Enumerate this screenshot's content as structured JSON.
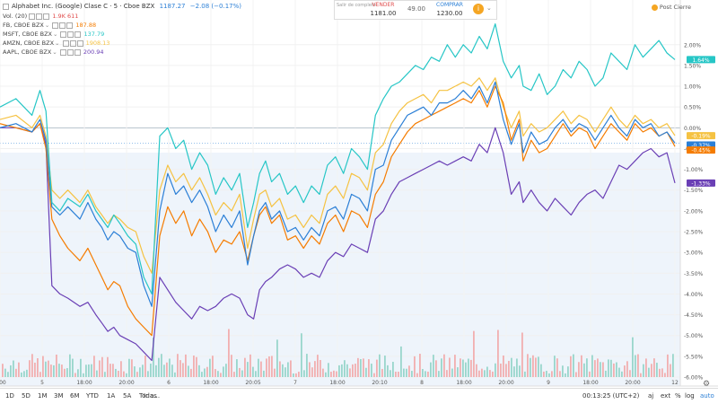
{
  "header": {
    "title": "Alphabet Inc. (Google) Clase C · 5 · Cboe BZX",
    "last": "1187.27",
    "change": "−2.08 (−0.17%)"
  },
  "volume_label": {
    "name": "Vol. (20)",
    "value": "1.9K  611"
  },
  "legend": [
    {
      "name": "FB, CBOE BZX",
      "value": "187.88",
      "color": "#f57c00"
    },
    {
      "name": "MSFT, CBOE BZX",
      "value": "137.79",
      "color": "#26c6c6"
    },
    {
      "name": "AMZN, CBOE BZX",
      "value": "1908.13",
      "color": "#f5c242"
    },
    {
      "name": "AAPL, CBOE BZX",
      "value": "200.94",
      "color": "#6a3fb5"
    }
  ],
  "trade_panel": {
    "small_text": "Salir de completo",
    "sell_label": "VENDER",
    "sell_price": "1181.00",
    "spread": "49.00",
    "buy_label": "COMPRAR",
    "buy_price": "1230.00"
  },
  "post_close_label": "Post Cierre",
  "bottom_bar": {
    "timeframes": [
      "1D",
      "5D",
      "1M",
      "3M",
      "6M",
      "YTD",
      "1A",
      "5A",
      "Todas"
    ],
    "goto": "Ir a...",
    "clock": "00:13:25 (UTC+2)",
    "options": [
      "aj",
      "ext",
      "%",
      "log",
      "auto"
    ]
  },
  "chart_data": {
    "type": "line",
    "ylim": [
      -6.0,
      2.6
    ],
    "y_ticks": [
      "2.00%",
      "1.50%",
      "1.00%",
      "0.50%",
      "0.00%",
      "-0.50%",
      "-1.00%",
      "-1.50%",
      "-2.00%",
      "-2.50%",
      "-3.00%",
      "-3.50%",
      "-4.00%",
      "-4.50%",
      "-5.00%",
      "-5.50%",
      "-6.00%"
    ],
    "x_ticks": [
      "0:00",
      "5",
      "18:00",
      "20:00",
      "6",
      "18:00",
      "20:05",
      "7",
      "18:00",
      "20:10",
      "8",
      "18:00",
      "20:00",
      "9",
      "18:00",
      "20:00",
      "12"
    ],
    "last_labels": [
      {
        "text": "1.64%",
        "value": 1.64,
        "color": "#26c6c6"
      },
      {
        "text": "-0.19%",
        "value": -0.19,
        "color": "#f5c242"
      },
      {
        "text": "-0.37%",
        "value": -0.37,
        "color": "#2b7fd6"
      },
      {
        "text": "-0.45%",
        "value": -0.45,
        "color": "#f57c00"
      },
      {
        "text": "-1.33%",
        "value": -1.33,
        "color": "#6a3fb5"
      }
    ],
    "series": [
      {
        "name": "GOOG",
        "color": "#2b7fd6",
        "x": [
          0,
          0.4,
          0.8,
          1.0,
          1.15,
          1.3,
          1.5,
          1.7,
          2.0,
          2.2,
          2.4,
          2.55,
          2.7,
          2.85,
          3.0,
          3.2,
          3.4,
          3.6,
          3.8,
          4.0,
          4.2,
          4.4,
          4.6,
          4.8,
          5.0,
          5.2,
          5.4,
          5.6,
          5.8,
          6.0,
          6.2,
          6.35,
          6.5,
          6.65,
          6.8,
          7.0,
          7.2,
          7.4,
          7.6,
          7.8,
          8.0,
          8.2,
          8.4,
          8.6,
          8.8,
          9.0,
          9.2,
          9.4,
          9.6,
          9.8,
          10.0,
          10.2,
          10.4,
          10.6,
          10.8,
          11.0,
          11.2,
          11.4,
          11.6,
          11.8,
          12.0,
          12.2,
          12.4,
          12.6,
          12.8,
          13.0,
          13.1,
          13.3,
          13.5,
          13.7,
          13.9,
          14.1,
          14.3,
          14.5,
          14.7,
          14.9,
          15.1,
          15.3,
          15.5,
          15.7,
          15.9,
          16.1,
          16.3,
          16.5,
          16.7,
          16.9
        ],
        "values": [
          0.0,
          0.1,
          -0.1,
          0.2,
          -0.3,
          -1.9,
          -2.1,
          -1.9,
          -2.2,
          -1.8,
          -2.2,
          -2.4,
          -2.7,
          -2.5,
          -2.6,
          -2.9,
          -3.0,
          -3.8,
          -4.3,
          -2.0,
          -1.1,
          -1.6,
          -1.4,
          -1.8,
          -1.5,
          -1.9,
          -2.5,
          -2.1,
          -2.4,
          -2.0,
          -3.3,
          -2.6,
          -2.0,
          -1.8,
          -2.2,
          -2.0,
          -2.5,
          -2.4,
          -2.7,
          -2.4,
          -2.6,
          -2.0,
          -1.9,
          -2.2,
          -1.6,
          -1.7,
          -2.0,
          -1.0,
          -0.9,
          -0.3,
          0.0,
          0.3,
          0.4,
          0.5,
          0.3,
          0.6,
          0.6,
          0.7,
          0.9,
          0.7,
          1.0,
          0.6,
          1.1,
          0.2,
          -0.4,
          0.1,
          -0.6,
          -0.1,
          -0.4,
          -0.3,
          0.0,
          0.2,
          -0.1,
          0.1,
          0.0,
          -0.3,
          0.0,
          0.3,
          0.0,
          -0.2,
          0.2,
          0.0,
          0.1,
          -0.2,
          -0.1,
          -0.37
        ]
      },
      {
        "name": "FB",
        "color": "#f57c00",
        "x": [
          0,
          0.4,
          0.8,
          1.0,
          1.15,
          1.3,
          1.5,
          1.7,
          2.0,
          2.2,
          2.4,
          2.55,
          2.7,
          2.85,
          3.0,
          3.2,
          3.4,
          3.6,
          3.8,
          4.0,
          4.2,
          4.4,
          4.6,
          4.8,
          5.0,
          5.2,
          5.4,
          5.6,
          5.8,
          6.0,
          6.2,
          6.35,
          6.5,
          6.65,
          6.8,
          7.0,
          7.2,
          7.4,
          7.6,
          7.8,
          8.0,
          8.2,
          8.4,
          8.6,
          8.8,
          9.0,
          9.2,
          9.4,
          9.6,
          9.8,
          10.0,
          10.2,
          10.4,
          10.6,
          10.8,
          11.0,
          11.2,
          11.4,
          11.6,
          11.8,
          12.0,
          12.2,
          12.4,
          12.6,
          12.8,
          13.0,
          13.1,
          13.3,
          13.5,
          13.7,
          13.9,
          14.1,
          14.3,
          14.5,
          14.7,
          14.9,
          15.1,
          15.3,
          15.5,
          15.7,
          15.9,
          16.1,
          16.3,
          16.5,
          16.7,
          16.9
        ],
        "values": [
          0.1,
          0.0,
          -0.1,
          0.1,
          -0.5,
          -2.2,
          -2.6,
          -2.9,
          -3.2,
          -2.9,
          -3.3,
          -3.6,
          -3.9,
          -3.7,
          -3.8,
          -4.3,
          -4.6,
          -4.8,
          -5.0,
          -2.6,
          -1.9,
          -2.3,
          -2.0,
          -2.6,
          -2.2,
          -2.5,
          -3.0,
          -2.7,
          -2.8,
          -2.5,
          -3.2,
          -2.6,
          -2.1,
          -1.9,
          -2.3,
          -2.1,
          -2.7,
          -2.6,
          -2.9,
          -2.6,
          -2.8,
          -2.3,
          -2.1,
          -2.5,
          -2.0,
          -2.1,
          -2.4,
          -1.6,
          -1.3,
          -0.7,
          -0.4,
          -0.1,
          0.1,
          0.2,
          0.3,
          0.4,
          0.5,
          0.6,
          0.7,
          0.6,
          0.9,
          0.5,
          1.0,
          0.6,
          -0.3,
          0.2,
          -0.8,
          -0.3,
          -0.6,
          -0.5,
          -0.2,
          0.1,
          -0.2,
          0.0,
          -0.1,
          -0.5,
          -0.2,
          0.1,
          -0.1,
          -0.3,
          0.1,
          -0.1,
          0.0,
          -0.2,
          -0.1,
          -0.45
        ]
      },
      {
        "name": "MSFT",
        "color": "#26c6c6",
        "x": [
          0,
          0.4,
          0.8,
          1.0,
          1.15,
          1.3,
          1.5,
          1.7,
          2.0,
          2.2,
          2.4,
          2.55,
          2.7,
          2.85,
          3.0,
          3.2,
          3.4,
          3.6,
          3.8,
          4.0,
          4.2,
          4.4,
          4.6,
          4.8,
          5.0,
          5.2,
          5.4,
          5.6,
          5.8,
          6.0,
          6.2,
          6.35,
          6.5,
          6.65,
          6.8,
          7.0,
          7.2,
          7.4,
          7.6,
          7.8,
          8.0,
          8.2,
          8.4,
          8.6,
          8.8,
          9.0,
          9.2,
          9.4,
          9.6,
          9.8,
          10.0,
          10.2,
          10.4,
          10.6,
          10.8,
          11.0,
          11.2,
          11.4,
          11.6,
          11.8,
          12.0,
          12.2,
          12.4,
          12.6,
          12.8,
          13.0,
          13.1,
          13.3,
          13.5,
          13.7,
          13.9,
          14.1,
          14.3,
          14.5,
          14.7,
          14.9,
          15.1,
          15.3,
          15.5,
          15.7,
          15.9,
          16.1,
          16.3,
          16.5,
          16.7,
          16.9
        ],
        "values": [
          0.5,
          0.7,
          0.3,
          0.9,
          0.4,
          -1.8,
          -2.0,
          -1.7,
          -1.9,
          -1.6,
          -2.0,
          -2.2,
          -2.4,
          -2.1,
          -2.3,
          -2.6,
          -2.8,
          -3.6,
          -4.0,
          -0.2,
          0.0,
          -0.5,
          -0.3,
          -1.0,
          -0.6,
          -0.9,
          -1.6,
          -1.2,
          -1.5,
          -1.1,
          -2.4,
          -1.8,
          -1.1,
          -0.8,
          -1.3,
          -1.1,
          -1.6,
          -1.4,
          -1.8,
          -1.4,
          -1.6,
          -0.9,
          -0.7,
          -1.1,
          -0.5,
          -0.7,
          -1.0,
          0.3,
          0.7,
          1.0,
          1.1,
          1.3,
          1.5,
          1.4,
          1.7,
          1.6,
          2.0,
          1.7,
          2.0,
          1.8,
          2.2,
          1.9,
          2.5,
          1.6,
          1.2,
          1.5,
          1.0,
          0.9,
          1.3,
          0.8,
          1.0,
          1.4,
          1.2,
          1.6,
          1.4,
          1.0,
          1.2,
          1.8,
          1.6,
          1.4,
          2.0,
          1.7,
          1.9,
          2.1,
          1.8,
          1.64
        ]
      },
      {
        "name": "AMZN",
        "color": "#f5c242",
        "x": [
          0,
          0.4,
          0.8,
          1.0,
          1.15,
          1.3,
          1.5,
          1.7,
          2.0,
          2.2,
          2.4,
          2.55,
          2.7,
          2.85,
          3.0,
          3.2,
          3.4,
          3.6,
          3.8,
          4.0,
          4.2,
          4.4,
          4.6,
          4.8,
          5.0,
          5.2,
          5.4,
          5.6,
          5.8,
          6.0,
          6.2,
          6.35,
          6.5,
          6.65,
          6.8,
          7.0,
          7.2,
          7.4,
          7.6,
          7.8,
          8.0,
          8.2,
          8.4,
          8.6,
          8.8,
          9.0,
          9.2,
          9.4,
          9.6,
          9.8,
          10.0,
          10.2,
          10.4,
          10.6,
          10.8,
          11.0,
          11.2,
          11.4,
          11.6,
          11.8,
          12.0,
          12.2,
          12.4,
          12.6,
          12.8,
          13.0,
          13.1,
          13.3,
          13.5,
          13.7,
          13.9,
          14.1,
          14.3,
          14.5,
          14.7,
          14.9,
          15.1,
          15.3,
          15.5,
          15.7,
          15.9,
          16.1,
          16.3,
          16.5,
          16.7,
          16.9
        ],
        "values": [
          0.2,
          0.3,
          0.0,
          0.3,
          -0.2,
          -1.5,
          -1.7,
          -1.5,
          -1.8,
          -1.5,
          -1.9,
          -2.1,
          -2.3,
          -2.1,
          -2.2,
          -2.4,
          -2.5,
          -3.1,
          -3.5,
          -1.5,
          -0.9,
          -1.3,
          -1.1,
          -1.5,
          -1.2,
          -1.6,
          -2.1,
          -1.8,
          -2.0,
          -1.6,
          -2.9,
          -2.2,
          -1.6,
          -1.5,
          -1.9,
          -1.7,
          -2.2,
          -2.1,
          -2.4,
          -2.1,
          -2.3,
          -1.6,
          -1.4,
          -1.7,
          -1.1,
          -1.2,
          -1.5,
          -0.6,
          -0.4,
          0.1,
          0.4,
          0.6,
          0.7,
          0.8,
          0.6,
          0.9,
          0.9,
          1.0,
          1.1,
          1.0,
          1.2,
          0.9,
          1.2,
          0.5,
          0.0,
          0.4,
          -0.2,
          0.1,
          -0.1,
          0.0,
          0.2,
          0.4,
          0.1,
          0.3,
          0.2,
          -0.1,
          0.2,
          0.5,
          0.2,
          0.0,
          0.3,
          0.1,
          0.2,
          0.0,
          0.1,
          -0.19
        ]
      },
      {
        "name": "AAPL",
        "color": "#6a3fb5",
        "x": [
          0,
          0.4,
          0.8,
          1.0,
          1.15,
          1.3,
          1.5,
          1.7,
          2.0,
          2.2,
          2.4,
          2.55,
          2.7,
          2.85,
          3.0,
          3.2,
          3.4,
          3.6,
          3.8,
          4.0,
          4.2,
          4.4,
          4.6,
          4.8,
          5.0,
          5.2,
          5.4,
          5.6,
          5.8,
          6.0,
          6.2,
          6.35,
          6.5,
          6.65,
          6.8,
          7.0,
          7.2,
          7.4,
          7.6,
          7.8,
          8.0,
          8.2,
          8.4,
          8.6,
          8.8,
          9.0,
          9.2,
          9.4,
          9.6,
          9.8,
          10.0,
          10.2,
          10.4,
          10.6,
          10.8,
          11.0,
          11.2,
          11.4,
          11.6,
          11.8,
          12.0,
          12.2,
          12.4,
          12.6,
          12.8,
          13.0,
          13.1,
          13.3,
          13.5,
          13.7,
          13.9,
          14.1,
          14.3,
          14.5,
          14.7,
          14.9,
          15.1,
          15.3,
          15.5,
          15.7,
          15.9,
          16.1,
          16.3,
          16.5,
          16.7,
          16.9
        ],
        "values": [
          0.0,
          0.0,
          -0.1,
          0.1,
          -0.4,
          -3.8,
          -4.0,
          -4.1,
          -4.3,
          -4.2,
          -4.5,
          -4.7,
          -4.9,
          -4.8,
          -5.0,
          -5.1,
          -5.2,
          -5.4,
          -5.6,
          -3.6,
          -3.9,
          -4.2,
          -4.4,
          -4.6,
          -4.3,
          -4.4,
          -4.3,
          -4.1,
          -4.0,
          -4.1,
          -4.5,
          -4.6,
          -3.9,
          -3.7,
          -3.6,
          -3.4,
          -3.3,
          -3.4,
          -3.6,
          -3.5,
          -3.6,
          -3.2,
          -3.0,
          -3.1,
          -2.8,
          -2.9,
          -3.0,
          -2.2,
          -2.0,
          -1.6,
          -1.3,
          -1.2,
          -1.1,
          -1.0,
          -0.9,
          -0.8,
          -0.9,
          -0.8,
          -0.7,
          -0.8,
          -0.4,
          -0.6,
          0.0,
          -0.6,
          -1.6,
          -1.3,
          -1.8,
          -1.5,
          -1.8,
          -2.0,
          -1.7,
          -1.9,
          -2.1,
          -1.8,
          -1.6,
          -1.5,
          -1.7,
          -1.3,
          -0.9,
          -1.0,
          -0.8,
          -0.6,
          -0.5,
          -0.7,
          -0.6,
          -1.33
        ]
      }
    ]
  }
}
